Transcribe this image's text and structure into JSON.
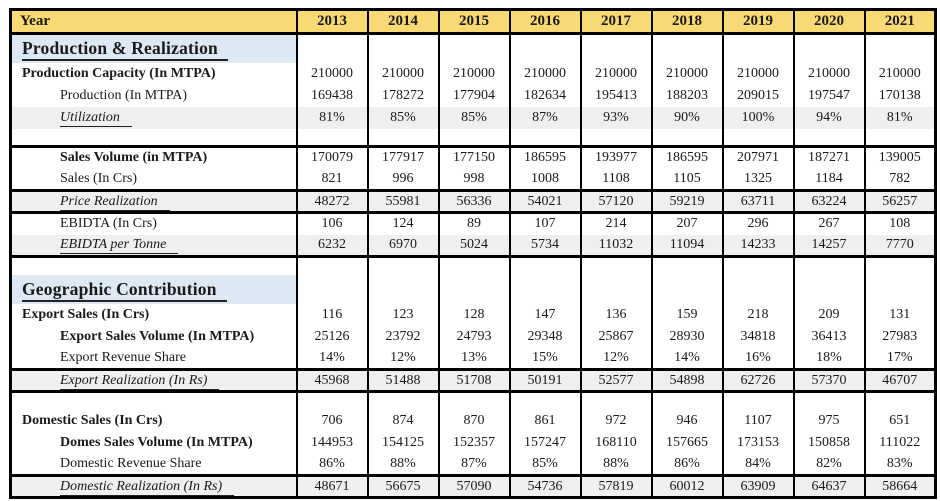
{
  "table": {
    "corner_label": "Year",
    "years": [
      "2013",
      "2014",
      "2015",
      "2016",
      "2017",
      "2018",
      "2019",
      "2020",
      "2021"
    ],
    "colors": {
      "header_bg": "#F8D973",
      "section_bg": "#DCE9F5",
      "shaded_row_bg": "#EFEFEF",
      "border": "#000000"
    },
    "rows": [
      {
        "type": "section",
        "border_top": true,
        "label": "Production & Realization",
        "values": [
          "",
          "",
          "",
          "",
          "",
          "",
          "",
          "",
          ""
        ]
      },
      {
        "type": "bold",
        "border_top": false,
        "label": "Production Capacity (In MTPA)",
        "values": [
          "210000",
          "210000",
          "210000",
          "210000",
          "210000",
          "210000",
          "210000",
          "210000",
          "210000"
        ]
      },
      {
        "type": "indent",
        "border_top": false,
        "label": "Production (In MTPA)",
        "values": [
          "169438",
          "178272",
          "177904",
          "182634",
          "195413",
          "188203",
          "209015",
          "197547",
          "170138"
        ]
      },
      {
        "type": "italic",
        "border_top": false,
        "label": "Utilization",
        "values": [
          "81%",
          "85%",
          "85%",
          "87%",
          "93%",
          "90%",
          "100%",
          "94%",
          "81%"
        ]
      },
      {
        "type": "blank",
        "border_top": false,
        "label": "",
        "values": [
          "",
          "",
          "",
          "",
          "",
          "",
          "",
          "",
          ""
        ]
      },
      {
        "type": "boldIndent",
        "border_top": true,
        "label": "Sales Volume (in MTPA)",
        "values": [
          "170079",
          "177917",
          "177150",
          "186595",
          "193977",
          "186595",
          "207971",
          "187271",
          "139005"
        ]
      },
      {
        "type": "indent",
        "border_top": false,
        "label": "Sales (In Crs)",
        "values": [
          "821",
          "996",
          "998",
          "1008",
          "1108",
          "1105",
          "1325",
          "1184",
          "782"
        ]
      },
      {
        "type": "italic",
        "border_top": true,
        "label": "Price Realization",
        "values": [
          "48272",
          "55981",
          "56336",
          "54021",
          "57120",
          "59219",
          "63711",
          "63224",
          "56257"
        ]
      },
      {
        "type": "indent",
        "border_top": true,
        "label": "EBIDTA (In Crs)",
        "values": [
          "106",
          "124",
          "89",
          "107",
          "214",
          "207",
          "296",
          "267",
          "108"
        ]
      },
      {
        "type": "italic",
        "border_top": false,
        "label": "EBIDTA per Tonne",
        "values": [
          "6232",
          "6970",
          "5024",
          "5734",
          "11032",
          "11094",
          "14233",
          "14257",
          "7770"
        ]
      },
      {
        "type": "blank",
        "border_top": true,
        "label": "",
        "values": [
          "",
          "",
          "",
          "",
          "",
          "",
          "",
          "",
          ""
        ]
      },
      {
        "type": "section",
        "border_top": false,
        "label": "Geographic Contribution",
        "values": [
          "",
          "",
          "",
          "",
          "",
          "",
          "",
          "",
          ""
        ]
      },
      {
        "type": "bold",
        "border_top": false,
        "label": "Export Sales (In Crs)",
        "values": [
          "116",
          "123",
          "128",
          "147",
          "136",
          "159",
          "218",
          "209",
          "131"
        ]
      },
      {
        "type": "boldIndent",
        "border_top": false,
        "label": "Export Sales Volume (In MTPA)",
        "values": [
          "25126",
          "23792",
          "24793",
          "29348",
          "25867",
          "28930",
          "34818",
          "36413",
          "27983"
        ]
      },
      {
        "type": "indent",
        "border_top": false,
        "label": "Export Revenue Share",
        "values": [
          "14%",
          "12%",
          "13%",
          "15%",
          "12%",
          "14%",
          "16%",
          "18%",
          "17%"
        ]
      },
      {
        "type": "italic",
        "border_top": true,
        "label": "Export Realization (In Rs)",
        "values": [
          "45968",
          "51488",
          "51708",
          "50191",
          "52577",
          "54898",
          "62726",
          "57370",
          "46707"
        ]
      },
      {
        "type": "blank",
        "border_top": true,
        "label": "",
        "values": [
          "",
          "",
          "",
          "",
          "",
          "",
          "",
          "",
          ""
        ]
      },
      {
        "type": "bold",
        "border_top": false,
        "label": "Domestic Sales (In Crs)",
        "values": [
          "706",
          "874",
          "870",
          "861",
          "972",
          "946",
          "1107",
          "975",
          "651"
        ]
      },
      {
        "type": "boldIndent",
        "border_top": false,
        "label": "Domes Sales Volume (In MTPA)",
        "values": [
          "144953",
          "154125",
          "152357",
          "157247",
          "168110",
          "157665",
          "173153",
          "150858",
          "111022"
        ]
      },
      {
        "type": "indent",
        "border_top": false,
        "label": "Domestic Revenue Share",
        "values": [
          "86%",
          "88%",
          "87%",
          "85%",
          "88%",
          "86%",
          "84%",
          "82%",
          "83%"
        ]
      },
      {
        "type": "italic",
        "border_top": true,
        "label": "Domestic Realization (In Rs)",
        "values": [
          "48671",
          "56675",
          "57090",
          "54736",
          "57819",
          "60012",
          "63909",
          "64637",
          "58664"
        ]
      }
    ]
  }
}
